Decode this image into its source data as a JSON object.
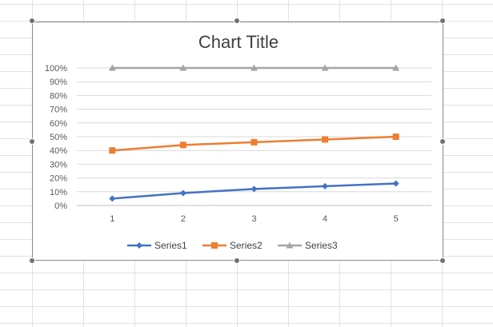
{
  "chart_data": {
    "type": "line",
    "title": "Chart Title",
    "xlabel": "",
    "ylabel": "",
    "x": [
      1,
      2,
      3,
      4,
      5
    ],
    "x_tick_labels": [
      "1",
      "2",
      "3",
      "4",
      "5"
    ],
    "ylim": [
      0,
      1
    ],
    "y_tick_labels": [
      "0%",
      "10%",
      "20%",
      "30%",
      "40%",
      "50%",
      "60%",
      "70%",
      "80%",
      "90%",
      "100%"
    ],
    "grid": true,
    "legend_position": "bottom",
    "series": [
      {
        "name": "Series1",
        "values": [
          0.05,
          0.09,
          0.12,
          0.14,
          0.16
        ],
        "color": "#4472c4",
        "marker": "diamond"
      },
      {
        "name": "Series2",
        "values": [
          0.4,
          0.44,
          0.46,
          0.48,
          0.5
        ],
        "color": "#ed7d31",
        "marker": "square"
      },
      {
        "name": "Series3",
        "values": [
          1.0,
          1.0,
          1.0,
          1.0,
          1.0
        ],
        "color": "#a5a5a5",
        "marker": "triangle"
      }
    ]
  }
}
